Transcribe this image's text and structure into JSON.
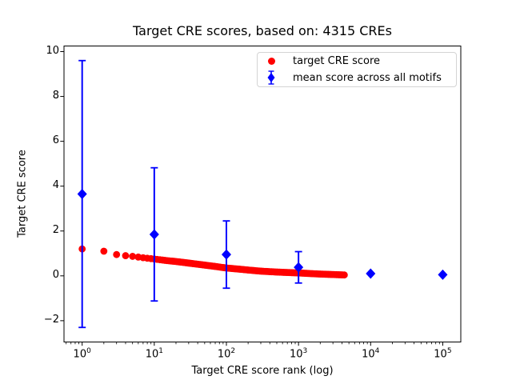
{
  "chart_data": {
    "type": "scatter",
    "title": "Target CRE scores, based on: 4315 CREs",
    "xlabel": "Target CRE score rank (log)",
    "ylabel": "Target CRE score",
    "x_scale": "log",
    "xlim": [
      0.56,
      178000
    ],
    "ylim": [
      -2.95,
      10.25
    ],
    "grid": false,
    "x_tick_base": "10",
    "x_tick_exponents": [
      0,
      1,
      2,
      3,
      4,
      5
    ],
    "y_ticks": [
      {
        "value": -2,
        "label": "−2"
      },
      {
        "value": 0,
        "label": "0"
      },
      {
        "value": 2,
        "label": "2"
      },
      {
        "value": 4,
        "label": "4"
      },
      {
        "value": 6,
        "label": "6"
      },
      {
        "value": 8,
        "label": "8"
      },
      {
        "value": 10,
        "label": "10"
      }
    ],
    "legend_position": "upper right",
    "n_cres": 4315,
    "series": [
      {
        "name": "target CRE score",
        "type": "scatter",
        "marker": "circle",
        "color": "#ff0000",
        "n_points_total": 4315,
        "anchor_points": [
          [
            1,
            1.2
          ],
          [
            2,
            1.1
          ],
          [
            3,
            0.95
          ],
          [
            4,
            0.9
          ],
          [
            5,
            0.87
          ],
          [
            7,
            0.81
          ],
          [
            10,
            0.75
          ],
          [
            15,
            0.68
          ],
          [
            20,
            0.64
          ],
          [
            30,
            0.57
          ],
          [
            50,
            0.48
          ],
          [
            70,
            0.42
          ],
          [
            100,
            0.35
          ],
          [
            150,
            0.3
          ],
          [
            200,
            0.26
          ],
          [
            300,
            0.21
          ],
          [
            500,
            0.17
          ],
          [
            700,
            0.15
          ],
          [
            1000,
            0.13
          ],
          [
            1500,
            0.1
          ],
          [
            2000,
            0.08
          ],
          [
            3000,
            0.06
          ],
          [
            4315,
            0.04
          ]
        ]
      },
      {
        "name": "mean score across all motifs",
        "type": "errorbar",
        "marker": "diamond",
        "color": "#0000ff",
        "x": [
          1,
          10,
          100,
          1000,
          10000,
          100000
        ],
        "y": [
          3.65,
          1.85,
          0.95,
          0.38,
          0.1,
          0.05
        ],
        "yerr": [
          5.95,
          2.97,
          1.5,
          0.7,
          0,
          0
        ]
      }
    ]
  }
}
